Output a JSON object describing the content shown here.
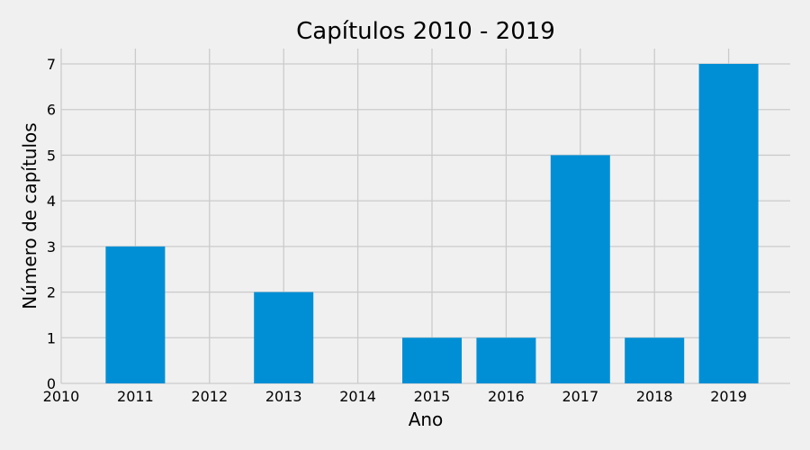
{
  "chart_data": {
    "type": "bar",
    "title": "Capítulos 2010 - 2019",
    "xlabel": "Ano",
    "ylabel": "Número de capítulos",
    "categories": [
      "2010",
      "2011",
      "2012",
      "2013",
      "2014",
      "2015",
      "2016",
      "2017",
      "2018",
      "2019"
    ],
    "values": [
      0,
      3,
      0,
      2,
      0,
      1,
      1,
      5,
      1,
      7
    ],
    "ylim": [
      0,
      7
    ],
    "yticks": [
      "0",
      "1",
      "2",
      "3",
      "4",
      "5",
      "6",
      "7"
    ],
    "grid": true,
    "legend": "none",
    "colors": {
      "bar": "#008fd5",
      "background": "#f0f0f0",
      "grid": "#cbcbcb"
    }
  }
}
